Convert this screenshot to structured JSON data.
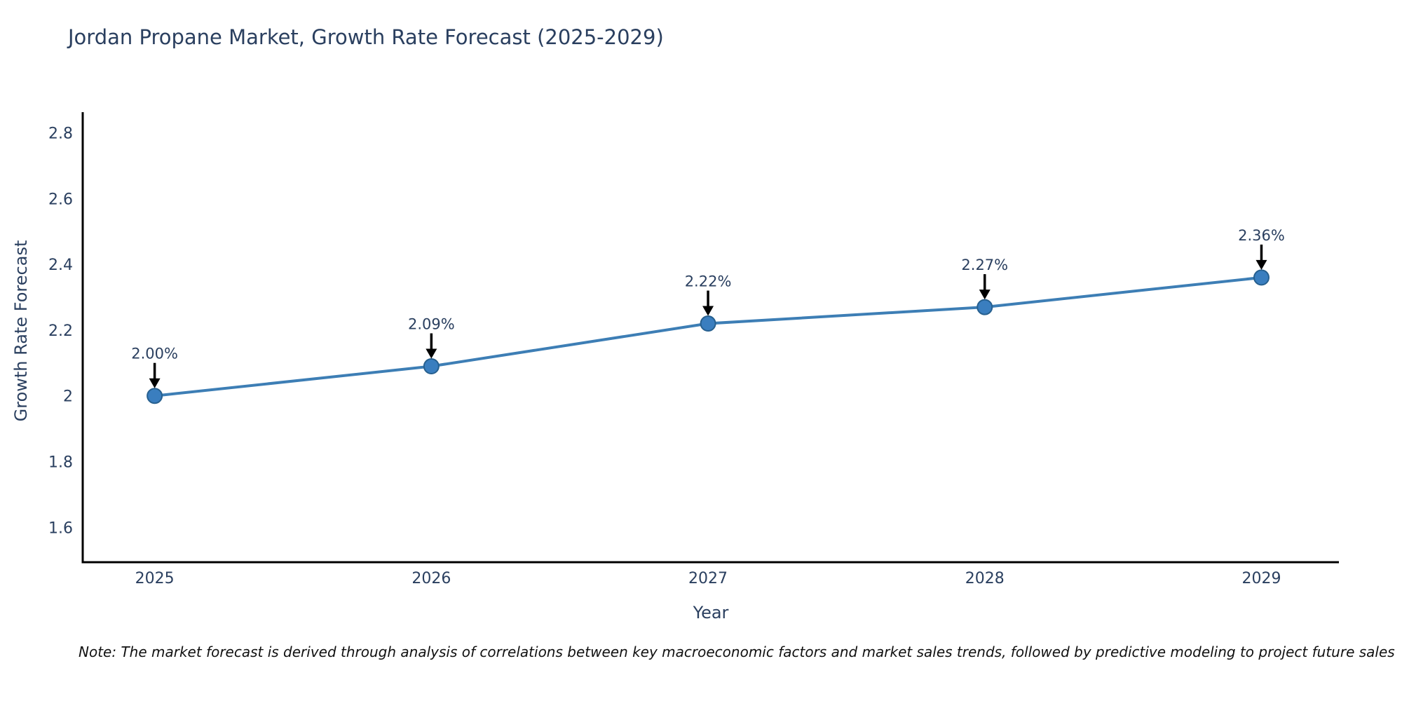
{
  "header": {
    "title": "Jordan Propane Market, Growth Rate Forecast (2025-2029)"
  },
  "footer": {
    "note": "Note: The market forecast is derived through analysis of correlations between key macroeconomic factors and market sales trends, followed by predictive modeling to project future sales"
  },
  "chart_data": {
    "type": "line",
    "title": "Jordan Propane Market, Growth Rate Forecast (2025-2029)",
    "xlabel": "Year",
    "ylabel": "Growth Rate Forecast",
    "categories": [
      "2025",
      "2026",
      "2027",
      "2028",
      "2029"
    ],
    "x": [
      2025,
      2026,
      2027,
      2028,
      2029
    ],
    "series": [
      {
        "name": "Growth Rate Forecast",
        "values": [
          2.0,
          2.09,
          2.22,
          2.27,
          2.36
        ]
      }
    ],
    "point_labels": [
      "2.00%",
      "2.09%",
      "2.22%",
      "2.27%",
      "2.36%"
    ],
    "xlim": [
      2024.74,
      2029.28
    ],
    "ylim": [
      1.494,
      2.863
    ],
    "yticks": [
      1.6,
      1.8,
      2.0,
      2.2,
      2.4,
      2.6,
      2.8
    ],
    "ytick_labels": [
      "1.6",
      "1.8",
      "2",
      "2.2",
      "2.4",
      "2.6",
      "2.8"
    ],
    "grid": false,
    "legend_position": "none",
    "annotation_style": "black-arrow-down-to-point",
    "colors": {
      "line": "#3d7eb5",
      "marker_fill": "#3a7ebf",
      "marker_edge": "#27608f",
      "arrow": "#000000",
      "text": "#2a3f5f",
      "note_text": "#111111",
      "axis": "#000000",
      "background": "#ffffff"
    }
  }
}
